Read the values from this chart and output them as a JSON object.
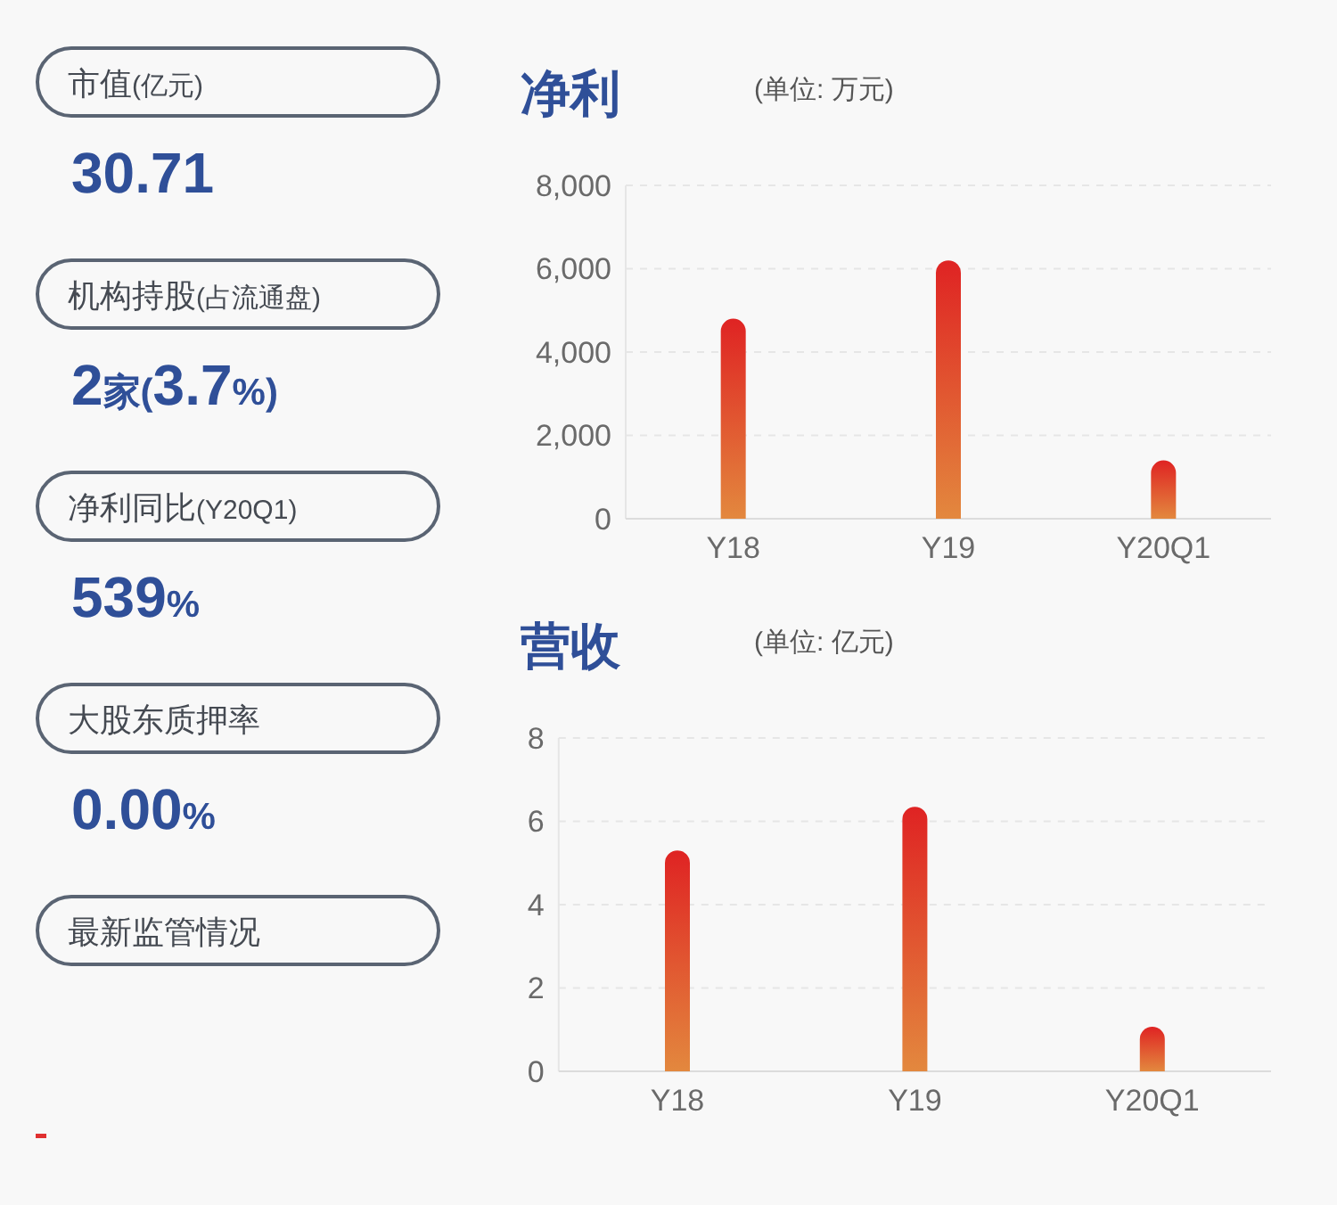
{
  "chart_data": [
    {
      "type": "other",
      "annotations": [
        "市值(亿元)",
        "30.71",
        "机构持股(占流通盘)",
        "2家(3.7%)",
        "净利同比(Y20Q1)",
        "539%",
        "大股东质押率",
        "0.00%",
        "最新监管情况"
      ]
    },
    {
      "type": "bar",
      "title": "净利",
      "subtitle": "(单位: 万元)",
      "categories": [
        "Y18",
        "Y19",
        "Y20Q1"
      ],
      "values": [
        4800,
        6200,
        1400
      ],
      "color": "#e04a2c",
      "ylim": [
        0,
        8000
      ],
      "yticks": [
        0,
        {
          "value": 2000,
          "label": "2,000"
        },
        {
          "value": 4000,
          "label": "4,000"
        },
        {
          "value": 6000,
          "label": "6,000"
        },
        {
          "value": 8000,
          "label": "8,000"
        }
      ],
      "grid": "y"
    },
    {
      "type": "bar",
      "title": "营收",
      "subtitle": "(单位: 亿元)",
      "categories": [
        "Y18",
        "Y19",
        "Y20Q1"
      ],
      "values": [
        5.3,
        6.35,
        1.07
      ],
      "color": "#e04a2c",
      "ylim": [
        0,
        8
      ],
      "yticks": [
        0,
        2,
        4,
        6,
        8
      ],
      "grid": "y"
    }
  ]
}
